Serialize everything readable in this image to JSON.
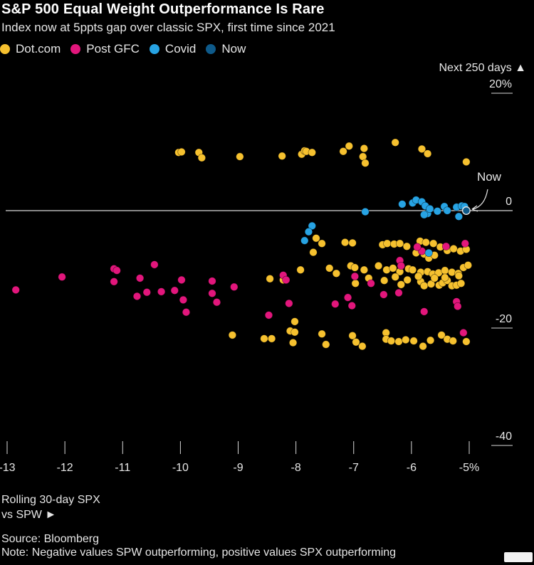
{
  "title": "S&P 500 Equal Weight Outperformance Is Rare",
  "subtitle": "Index now at 5ppts gap over classic SPX, first time since 2021",
  "legend": [
    {
      "label": "Dot.com",
      "color": "#f6c12f"
    },
    {
      "label": "Post GFC",
      "color": "#e2167c"
    },
    {
      "label": "Covid",
      "color": "#27a3e3"
    },
    {
      "label": "Now",
      "color": "#0e5a8a"
    }
  ],
  "source": "Source: Bloomberg",
  "note": "Note: Negative values SPW outperforming, positive values SPX outperforming",
  "chart_data": {
    "type": "scatter",
    "title": "S&P 500 Equal Weight Outperformance Is Rare",
    "ylabel": "Next 250 days ▲",
    "xlabel_lines": [
      "Rolling 30-day SPX",
      "vs SPW ►"
    ],
    "xlim": [
      -13.1,
      -4.9
    ],
    "ylim": [
      -40,
      20
    ],
    "x_ticks": [
      -13,
      -12,
      -11,
      -10,
      -9,
      -8,
      -7,
      -6,
      -5
    ],
    "x_tick_labels": [
      "-13",
      "-12",
      "-11",
      "-10",
      "-9",
      "-8",
      "-7",
      "-6",
      "-5%"
    ],
    "y_ticks": [
      20,
      0,
      -20,
      -40
    ],
    "y_tick_labels": [
      "20%",
      "0",
      "-20",
      "-40"
    ],
    "annotation": {
      "text": "Now",
      "x": -5.05,
      "y": 0.0
    },
    "series": [
      {
        "name": "Dot.com",
        "color": "#f6c12f",
        "points": [
          [
            -10.03,
            9.9
          ],
          [
            -9.98,
            10
          ],
          [
            -9.68,
            9.9
          ],
          [
            -9.63,
            9
          ],
          [
            -8.97,
            9.2
          ],
          [
            -8.24,
            9.3
          ],
          [
            -7.9,
            9.6
          ],
          [
            -7.85,
            10.2
          ],
          [
            -7.82,
            10.1
          ],
          [
            -7.72,
            9.9
          ],
          [
            -7.18,
            10.1
          ],
          [
            -7.08,
            11
          ],
          [
            -6.82,
            10.6
          ],
          [
            -6.84,
            9.2
          ],
          [
            -6.8,
            8.1
          ],
          [
            -6.28,
            11.6
          ],
          [
            -5.82,
            10.5
          ],
          [
            -5.72,
            9.7
          ],
          [
            -5.05,
            8.3
          ],
          [
            -7.65,
            -4.7
          ],
          [
            -7.55,
            -5.6
          ],
          [
            -7.7,
            -7.1
          ],
          [
            -7.15,
            -5.4
          ],
          [
            -7.02,
            -5.5
          ],
          [
            -6.5,
            -5.8
          ],
          [
            -6.42,
            -5.6
          ],
          [
            -6.3,
            -5.7
          ],
          [
            -6.2,
            -5.6
          ],
          [
            -6.08,
            -6.1
          ],
          [
            -5.85,
            -5.2
          ],
          [
            -5.75,
            -5.4
          ],
          [
            -5.62,
            -5.6
          ],
          [
            -5.5,
            -6.2
          ],
          [
            -5.38,
            -6.8
          ],
          [
            -5.27,
            -6.5
          ],
          [
            -5.15,
            -6.9
          ],
          [
            -5.05,
            -6.6
          ],
          [
            -5.92,
            -7.2
          ],
          [
            -5.78,
            -7.4
          ],
          [
            -5.7,
            -8.1
          ],
          [
            -5.6,
            -7.6
          ],
          [
            -7.92,
            -10.1
          ],
          [
            -7.42,
            -9.8
          ],
          [
            -7.3,
            -10.7
          ],
          [
            -7.05,
            -9.4
          ],
          [
            -6.98,
            -9.7
          ],
          [
            -6.82,
            -10.1
          ],
          [
            -6.57,
            -9.4
          ],
          [
            -6.43,
            -10.1
          ],
          [
            -6.32,
            -9.8
          ],
          [
            -6.2,
            -10.4
          ],
          [
            -6.05,
            -9.9
          ],
          [
            -5.98,
            -10.1
          ],
          [
            -5.84,
            -10.5
          ],
          [
            -5.72,
            -10.4
          ],
          [
            -5.63,
            -10.8
          ],
          [
            -5.53,
            -10.6
          ],
          [
            -5.42,
            -10.2
          ],
          [
            -5.3,
            -10.5
          ],
          [
            -5.19,
            -10.7
          ],
          [
            -5.1,
            -9.7
          ],
          [
            -5.02,
            -9.3
          ],
          [
            -8.45,
            -11.6
          ],
          [
            -8.22,
            -11.8
          ],
          [
            -6.97,
            -12.4
          ],
          [
            -6.74,
            -11.5
          ],
          [
            -6.47,
            -11.9
          ],
          [
            -6.28,
            -11.3
          ],
          [
            -6.18,
            -12.6
          ],
          [
            -6.07,
            -11.8
          ],
          [
            -5.84,
            -12.1
          ],
          [
            -5.78,
            -12.8
          ],
          [
            -5.66,
            -12.5
          ],
          [
            -5.6,
            -11.5
          ],
          [
            -5.52,
            -12.7
          ],
          [
            -5.46,
            -12.3
          ],
          [
            -5.38,
            -11.9
          ],
          [
            -5.3,
            -12.8
          ],
          [
            -5.22,
            -12.7
          ],
          [
            -5.14,
            -12.4
          ],
          [
            -5.88,
            -11.2
          ],
          [
            -5.42,
            -11.4
          ],
          [
            -5.18,
            -11.1
          ],
          [
            -8.02,
            -18.9
          ],
          [
            -8.1,
            -20.5
          ],
          [
            -8.02,
            -20.7
          ],
          [
            -7.55,
            -21
          ],
          [
            -7.48,
            -22.8
          ],
          [
            -9.1,
            -21.2
          ],
          [
            -8.55,
            -21.8
          ],
          [
            -8.42,
            -21.8
          ],
          [
            -8.05,
            -22.5
          ],
          [
            -7.02,
            -21.3
          ],
          [
            -6.96,
            -22.4
          ],
          [
            -6.85,
            -23.1
          ],
          [
            -6.44,
            -20.8
          ],
          [
            -6.44,
            -21.9
          ],
          [
            -6.35,
            -22.2
          ],
          [
            -6.22,
            -22.3
          ],
          [
            -6.1,
            -22
          ],
          [
            -5.96,
            -22.2
          ],
          [
            -5.8,
            -23.1
          ],
          [
            -5.67,
            -22.1
          ],
          [
            -5.48,
            -21.2
          ],
          [
            -5.38,
            -21.9
          ],
          [
            -5.28,
            -22.2
          ],
          [
            -5.05,
            -22.3
          ]
        ]
      },
      {
        "name": "Post GFC",
        "color": "#e2167c",
        "points": [
          [
            -12.85,
            -13.5
          ],
          [
            -12.05,
            -11.3
          ],
          [
            -11.15,
            -9.9
          ],
          [
            -11.1,
            -10.2
          ],
          [
            -11.15,
            -12.1
          ],
          [
            -10.7,
            -11.5
          ],
          [
            -10.75,
            -14.6
          ],
          [
            -10.58,
            -13.9
          ],
          [
            -10.45,
            -9.2
          ],
          [
            -10.33,
            -13.8
          ],
          [
            -10.1,
            -13.6
          ],
          [
            -9.98,
            -11.8
          ],
          [
            -9.95,
            -15.2
          ],
          [
            -9.9,
            -17.3
          ],
          [
            -9.45,
            -12
          ],
          [
            -9.45,
            -14.1
          ],
          [
            -9.37,
            -15.6
          ],
          [
            -9.07,
            -13
          ],
          [
            -8.47,
            -17.8
          ],
          [
            -8.22,
            -11
          ],
          [
            -8.17,
            -11.8
          ],
          [
            -8.12,
            -15.8
          ],
          [
            -7.32,
            -15.9
          ],
          [
            -7.1,
            -14.8
          ],
          [
            -7.03,
            -16.2
          ],
          [
            -6.98,
            -11.2
          ],
          [
            -6.7,
            -12.4
          ],
          [
            -6.48,
            -14.3
          ],
          [
            -6.22,
            -14
          ],
          [
            -6.2,
            -8.5
          ],
          [
            -6.18,
            -9.4
          ],
          [
            -5.82,
            -6.9
          ],
          [
            -5.9,
            -6.2
          ],
          [
            -5.4,
            -6.1
          ],
          [
            -5.07,
            -5.6
          ],
          [
            -5.78,
            -17.2
          ],
          [
            -5.22,
            -15.5
          ],
          [
            -5.2,
            -16.3
          ],
          [
            -5.1,
            -20.8
          ]
        ]
      },
      {
        "name": "Covid",
        "color": "#27a3e3",
        "points": [
          [
            -7.72,
            -2.6
          ],
          [
            -7.78,
            -3.6
          ],
          [
            -7.85,
            -5.1
          ],
          [
            -6.8,
            -0.2
          ],
          [
            -6.16,
            1.1
          ],
          [
            -5.98,
            1.3
          ],
          [
            -5.92,
            1.8
          ],
          [
            -5.82,
            1.5
          ],
          [
            -5.76,
            0.8
          ],
          [
            -5.72,
            -0.5
          ],
          [
            -5.68,
            0.3
          ],
          [
            -5.55,
            -0.1
          ],
          [
            -5.43,
            0.7
          ],
          [
            -5.38,
            0
          ],
          [
            -5.22,
            0.6
          ],
          [
            -5.18,
            -1
          ],
          [
            -5.13,
            0.8
          ],
          [
            -5.08,
            0.7
          ],
          [
            -5.78,
            -0.7
          ],
          [
            -5.7,
            -7.2
          ]
        ]
      },
      {
        "name": "Now",
        "color": "#0e5a8a",
        "points": [
          [
            -5.05,
            0.0
          ]
        ]
      }
    ]
  }
}
